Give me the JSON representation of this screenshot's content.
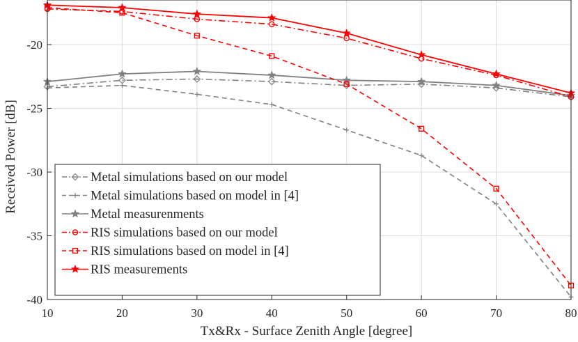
{
  "chart_data": {
    "type": "line",
    "title": "",
    "xlabel": "Tx&Rx - Surface Zenith Angle [degree]",
    "ylabel": "Received Power [dB]",
    "xlim": [
      10,
      80
    ],
    "ylim": [
      -40,
      -16.5
    ],
    "xticks": [
      10,
      20,
      30,
      40,
      50,
      60,
      70,
      80
    ],
    "yticks": [
      -20,
      -25,
      -30,
      -35,
      -40
    ],
    "grid": true,
    "legend_position": "lower-left",
    "x": [
      10,
      20,
      30,
      40,
      50,
      60,
      70,
      80
    ],
    "series": [
      {
        "name": "Metal simulations based on our model",
        "color": "#808080",
        "dash": "dashdot",
        "marker": "diamond",
        "values": [
          -23.3,
          -22.8,
          -22.7,
          -22.9,
          -23.2,
          -23.1,
          -23.4,
          -24.1
        ]
      },
      {
        "name": "Metal simulations based on model in [4]",
        "color": "#808080",
        "dash": "dashed",
        "marker": "plus",
        "values": [
          -23.4,
          -23.2,
          -23.9,
          -24.7,
          -26.7,
          -28.7,
          -32.5,
          -39.8
        ]
      },
      {
        "name": "Metal measurenments",
        "color": "#808080",
        "dash": "solid",
        "marker": "star",
        "values": [
          -22.9,
          -22.3,
          -22.1,
          -22.4,
          -22.8,
          -22.9,
          -23.2,
          -24.0
        ]
      },
      {
        "name": "RIS simulations based on our model",
        "color": "#ff0000",
        "dash": "dashdot",
        "marker": "circle",
        "values": [
          -17.2,
          -17.4,
          -18.0,
          -18.4,
          -19.5,
          -21.1,
          -22.4,
          -24.1
        ]
      },
      {
        "name": "RIS simulations based on model in [4]",
        "color": "#ff0000",
        "dash": "dashed",
        "marker": "square",
        "values": [
          -17.1,
          -17.5,
          -19.3,
          -20.9,
          -23.1,
          -26.6,
          -31.3,
          -38.9
        ]
      },
      {
        "name": "RIS measurements",
        "color": "#ff0000",
        "dash": "solid",
        "marker": "star",
        "values": [
          -16.9,
          -17.1,
          -17.6,
          -17.9,
          -19.1,
          -20.8,
          -22.3,
          -23.8
        ]
      }
    ]
  }
}
